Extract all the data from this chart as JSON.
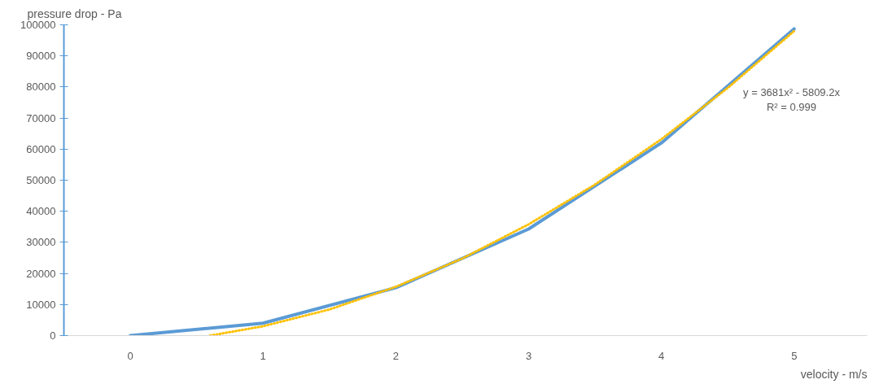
{
  "chart_data": {
    "type": "line",
    "xlabel": "velocity - m/s",
    "ylabel": "pressure drop - Pa",
    "x": [
      0,
      1,
      2,
      3,
      4,
      5
    ],
    "xlim": [
      -0.5,
      5.55
    ],
    "xticks": [
      0,
      1,
      2,
      3,
      4,
      5
    ],
    "ylim": [
      0,
      100000
    ],
    "yticks": [
      0,
      10000,
      20000,
      30000,
      40000,
      50000,
      60000,
      70000,
      80000,
      90000,
      100000
    ],
    "grid": false,
    "series": [
      {
        "color": "#5b9bd5",
        "values": [
          0,
          4000,
          15400,
          34300,
          62000,
          98700
        ]
      },
      {
        "type": "line",
        "line_style": "dotted",
        "color": "#ffc000",
        "x": [
          0.6,
          1,
          1.5,
          2,
          2.5,
          3,
          3.5,
          4,
          4.5,
          5
        ],
        "values": [
          0,
          3000,
          8400,
          15700,
          24800,
          35800,
          48600,
          63200,
          79700,
          98000
        ]
      }
    ],
    "annotations": [
      "y = 3681x² - 5809.2x",
      "R² = 0.999"
    ]
  }
}
